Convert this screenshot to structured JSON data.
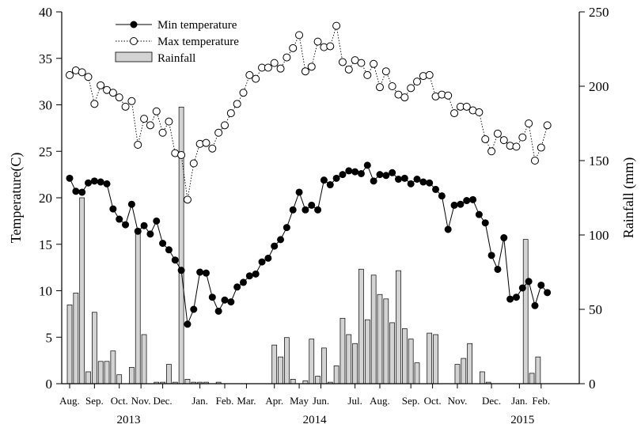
{
  "chart_data": {
    "type": "bar",
    "left_axis": {
      "label": "Temperature(C)",
      "ylim": [
        0,
        40
      ],
      "ticks": [
        0,
        5,
        10,
        15,
        20,
        25,
        30,
        35,
        40
      ]
    },
    "right_axis": {
      "label": "Rainfall (mm)",
      "ylim": [
        0,
        250
      ],
      "ticks": [
        0,
        50,
        100,
        150,
        200,
        250
      ]
    },
    "x_axis": {
      "range": [
        0,
        162
      ],
      "month_ticks": [
        {
          "label": "Aug.",
          "x": 0
        },
        {
          "label": "Sep.",
          "x": 8
        },
        {
          "label": "Oct.",
          "x": 16
        },
        {
          "label": "Nov.",
          "x": 23
        },
        {
          "label": "Dec.",
          "x": 30
        },
        {
          "label": "Jan.",
          "x": 42
        },
        {
          "label": "Feb.",
          "x": 50
        },
        {
          "label": "Mar.",
          "x": 57
        },
        {
          "label": "Apr.",
          "x": 66
        },
        {
          "label": "May",
          "x": 74
        },
        {
          "label": "Jun.",
          "x": 81
        },
        {
          "label": "Jul.",
          "x": 92
        },
        {
          "label": "Aug.",
          "x": 100
        },
        {
          "label": "Sep.",
          "x": 110
        },
        {
          "label": "Oct.",
          "x": 117
        },
        {
          "label": "Nov.",
          "x": 125
        },
        {
          "label": "Dec.",
          "x": 136
        },
        {
          "label": "Jan.",
          "x": 145
        },
        {
          "label": "Feb.",
          "x": 152
        }
      ],
      "year_labels": [
        {
          "label": "2013",
          "x": 19
        },
        {
          "label": "2014",
          "x": 79
        },
        {
          "label": "2015",
          "x": 146
        }
      ]
    },
    "legend": {
      "position": "top-left",
      "items": [
        "Min temperature",
        "Max temperature",
        "Rainfall"
      ]
    },
    "series": [
      {
        "name": "Min temperature",
        "axis": "left",
        "style": "line-filled-circle",
        "points": [
          [
            0,
            22.1
          ],
          [
            2,
            20.7
          ],
          [
            4,
            20.6
          ],
          [
            6,
            21.6
          ],
          [
            8,
            21.8
          ],
          [
            10,
            21.7
          ],
          [
            12,
            21.5
          ],
          [
            14,
            18.8
          ],
          [
            16,
            17.7
          ],
          [
            18,
            17.1
          ],
          [
            20,
            19.3
          ],
          [
            22,
            16.4
          ],
          [
            24,
            17.0
          ],
          [
            26,
            16.1
          ],
          [
            28,
            17.5
          ],
          [
            30,
            15.1
          ],
          [
            32,
            14.4
          ],
          [
            34,
            13.3
          ],
          [
            36,
            12.2
          ],
          [
            38,
            6.4
          ],
          [
            40,
            8.0
          ],
          [
            42,
            12.0
          ],
          [
            44,
            11.9
          ],
          [
            46,
            9.3
          ],
          [
            48,
            7.8
          ],
          [
            50,
            9.0
          ],
          [
            52,
            8.8
          ],
          [
            54,
            10.4
          ],
          [
            56,
            10.9
          ],
          [
            58,
            11.6
          ],
          [
            60,
            11.8
          ],
          [
            62,
            13.1
          ],
          [
            64,
            13.5
          ],
          [
            66,
            14.8
          ],
          [
            68,
            15.5
          ],
          [
            70,
            16.8
          ],
          [
            72,
            18.7
          ],
          [
            74,
            20.6
          ],
          [
            76,
            18.7
          ],
          [
            78,
            19.2
          ],
          [
            80,
            18.7
          ],
          [
            82,
            21.9
          ],
          [
            84,
            21.4
          ],
          [
            86,
            22.1
          ],
          [
            88,
            22.5
          ],
          [
            90,
            22.9
          ],
          [
            92,
            22.8
          ],
          [
            94,
            22.6
          ],
          [
            96,
            23.5
          ],
          [
            98,
            21.8
          ],
          [
            100,
            22.5
          ],
          [
            102,
            22.4
          ],
          [
            104,
            22.7
          ],
          [
            106,
            22.0
          ],
          [
            108,
            22.1
          ],
          [
            110,
            21.5
          ],
          [
            112,
            22.0
          ],
          [
            114,
            21.7
          ],
          [
            116,
            21.6
          ],
          [
            118,
            20.9
          ],
          [
            120,
            20.2
          ],
          [
            122,
            16.6
          ],
          [
            124,
            19.2
          ],
          [
            126,
            19.3
          ],
          [
            128,
            19.7
          ],
          [
            130,
            19.8
          ],
          [
            132,
            18.2
          ],
          [
            134,
            17.3
          ],
          [
            136,
            13.8
          ],
          [
            138,
            12.3
          ],
          [
            140,
            15.7
          ],
          [
            142,
            9.1
          ],
          [
            144,
            9.3
          ],
          [
            146,
            10.3
          ],
          [
            148,
            11.0
          ],
          [
            150,
            8.4
          ],
          [
            152,
            10.6
          ],
          [
            154,
            9.8
          ]
        ]
      },
      {
        "name": "Max temperature",
        "axis": "left",
        "style": "dotted-open-circle",
        "points": [
          [
            0,
            33.2
          ],
          [
            2,
            33.7
          ],
          [
            4,
            33.5
          ],
          [
            6,
            33.0
          ],
          [
            8,
            30.1
          ],
          [
            10,
            32.1
          ],
          [
            12,
            31.6
          ],
          [
            14,
            31.3
          ],
          [
            16,
            30.8
          ],
          [
            18,
            29.8
          ],
          [
            20,
            30.4
          ],
          [
            22,
            25.7
          ],
          [
            24,
            28.5
          ],
          [
            26,
            27.8
          ],
          [
            28,
            29.3
          ],
          [
            30,
            27.0
          ],
          [
            32,
            28.2
          ],
          [
            34,
            24.8
          ],
          [
            36,
            24.6
          ],
          [
            38,
            19.8
          ],
          [
            40,
            23.7
          ],
          [
            42,
            25.8
          ],
          [
            44,
            25.9
          ],
          [
            46,
            25.3
          ],
          [
            48,
            27.0
          ],
          [
            50,
            27.8
          ],
          [
            52,
            29.1
          ],
          [
            54,
            30.1
          ],
          [
            56,
            31.3
          ],
          [
            58,
            33.2
          ],
          [
            60,
            32.8
          ],
          [
            62,
            34.0
          ],
          [
            64,
            34.0
          ],
          [
            66,
            34.5
          ],
          [
            68,
            33.9
          ],
          [
            70,
            35.1
          ],
          [
            72,
            36.1
          ],
          [
            74,
            37.5
          ],
          [
            76,
            33.6
          ],
          [
            78,
            34.1
          ],
          [
            80,
            36.8
          ],
          [
            82,
            36.2
          ],
          [
            84,
            36.3
          ],
          [
            86,
            38.5
          ],
          [
            88,
            34.6
          ],
          [
            90,
            33.8
          ],
          [
            92,
            34.8
          ],
          [
            94,
            34.5
          ],
          [
            96,
            33.2
          ],
          [
            98,
            34.4
          ],
          [
            100,
            31.9
          ],
          [
            102,
            33.6
          ],
          [
            104,
            32.0
          ],
          [
            106,
            31.1
          ],
          [
            108,
            30.8
          ],
          [
            110,
            31.8
          ],
          [
            112,
            32.5
          ],
          [
            114,
            33.1
          ],
          [
            116,
            33.2
          ],
          [
            118,
            30.9
          ],
          [
            120,
            31.1
          ],
          [
            122,
            31.0
          ],
          [
            124,
            29.1
          ],
          [
            126,
            29.8
          ],
          [
            128,
            29.8
          ],
          [
            130,
            29.4
          ],
          [
            132,
            29.2
          ],
          [
            134,
            26.3
          ],
          [
            136,
            25.0
          ],
          [
            138,
            26.9
          ],
          [
            140,
            26.2
          ],
          [
            142,
            25.6
          ],
          [
            144,
            25.5
          ],
          [
            146,
            26.5
          ],
          [
            148,
            28.0
          ],
          [
            150,
            24.0
          ],
          [
            152,
            25.4
          ],
          [
            154,
            27.8
          ]
        ]
      },
      {
        "name": "Rainfall",
        "axis": "right",
        "style": "bar",
        "bars": [
          [
            0,
            53
          ],
          [
            2,
            61
          ],
          [
            4,
            125
          ],
          [
            6,
            8
          ],
          [
            8,
            48
          ],
          [
            10,
            15
          ],
          [
            12,
            15
          ],
          [
            14,
            22
          ],
          [
            16,
            6
          ],
          [
            20,
            11
          ],
          [
            22,
            104
          ],
          [
            24,
            33
          ],
          [
            28,
            1
          ],
          [
            30,
            1
          ],
          [
            32,
            13
          ],
          [
            34,
            1
          ],
          [
            36,
            186
          ],
          [
            38,
            3
          ],
          [
            40,
            1
          ],
          [
            42,
            1
          ],
          [
            44,
            1
          ],
          [
            48,
            1
          ],
          [
            66,
            26
          ],
          [
            68,
            18
          ],
          [
            70,
            31
          ],
          [
            72,
            3
          ],
          [
            76,
            2
          ],
          [
            78,
            30
          ],
          [
            80,
            5
          ],
          [
            82,
            24
          ],
          [
            84,
            1
          ],
          [
            86,
            12
          ],
          [
            88,
            44
          ],
          [
            90,
            33
          ],
          [
            92,
            27
          ],
          [
            94,
            77
          ],
          [
            96,
            43
          ],
          [
            98,
            73
          ],
          [
            100,
            60
          ],
          [
            102,
            57
          ],
          [
            104,
            41
          ],
          [
            106,
            76
          ],
          [
            108,
            37
          ],
          [
            110,
            30
          ],
          [
            112,
            14
          ],
          [
            116,
            34
          ],
          [
            118,
            33
          ],
          [
            125,
            13
          ],
          [
            127,
            17
          ],
          [
            129,
            27
          ],
          [
            133,
            8
          ],
          [
            135,
            1
          ],
          [
            147,
            97
          ],
          [
            149,
            7
          ],
          [
            151,
            18
          ]
        ]
      }
    ]
  }
}
